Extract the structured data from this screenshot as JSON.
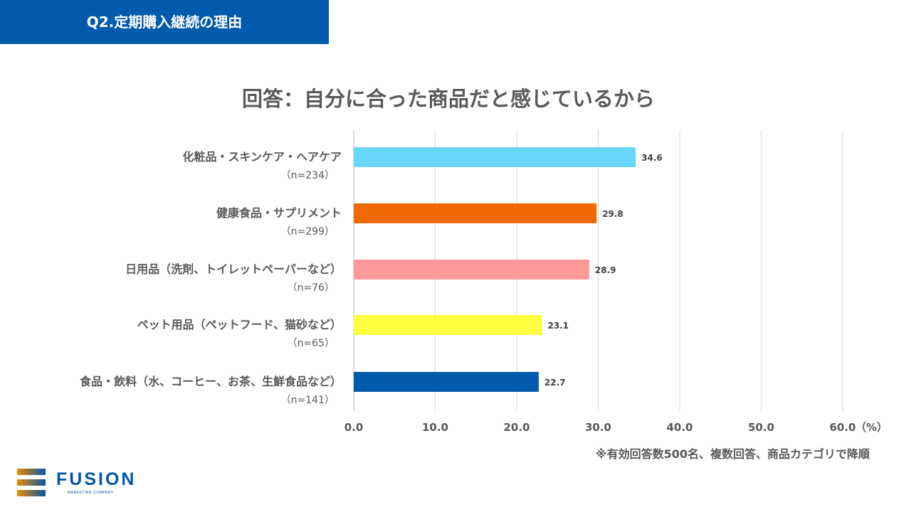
{
  "header": {
    "title": "Q2.定期購入継続の理由"
  },
  "chart_data": {
    "type": "bar",
    "orientation": "horizontal",
    "title": "回答：自分に合った商品だと感じているから",
    "categories": [
      "化粧品・スキンケア・ヘアケア",
      "健康食品・サプリメント",
      "日用品（洗剤、トイレットペーパーなど）",
      "ペット用品（ペットフード、猫砂など）",
      "食品・飲料（水、コーヒー、お茶、生鮮食品など）"
    ],
    "sample_sizes": [
      "（n=234）",
      "（n=299）",
      "（n=76）",
      "（n=65）",
      "（n=141）"
    ],
    "values": [
      34.6,
      29.8,
      28.9,
      23.1,
      22.7
    ],
    "value_labels": [
      "34.6",
      "29.8",
      "28.9",
      "23.1",
      "22.7"
    ],
    "colors": [
      "#69d7fc",
      "#f06800",
      "#ff9999",
      "#ffff40",
      "#005bac"
    ],
    "xlim": [
      0,
      60
    ],
    "ticks": [
      "0.0",
      "10.0",
      "20.0",
      "30.0",
      "40.0",
      "50.0",
      "60.0"
    ],
    "unit": "（%）",
    "grid": true
  },
  "footnote": "※有効回答数500名、複数回答、商品カテゴリで降順",
  "logo": {
    "name": "FUSION",
    "tagline": "MARKETING COMPANY"
  }
}
